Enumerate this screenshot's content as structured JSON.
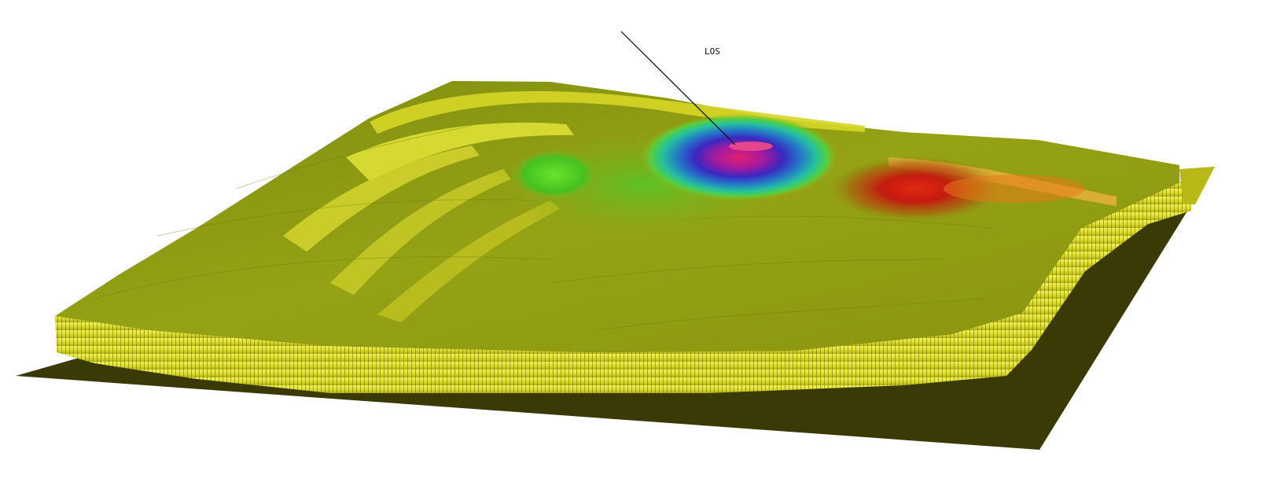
{
  "figure": {
    "los_label": "LOS"
  },
  "colors": {
    "background": "#ffffff",
    "base_plane": "#3a3a07",
    "terrain_olive": "#8c9a12",
    "terrain_yellow": "#dede2a",
    "cliff_yellow": "#f0f048",
    "deformation_green": "#5fd62a",
    "deformation_cyan": "#27c79a",
    "deformation_blue": "#2a2fb8",
    "deformation_purple": "#7a1aa8",
    "deformation_magenta": "#d4227a",
    "deformation_red": "#c41a10",
    "deformation_orange": "#e67a18",
    "los_line": "#000000"
  }
}
